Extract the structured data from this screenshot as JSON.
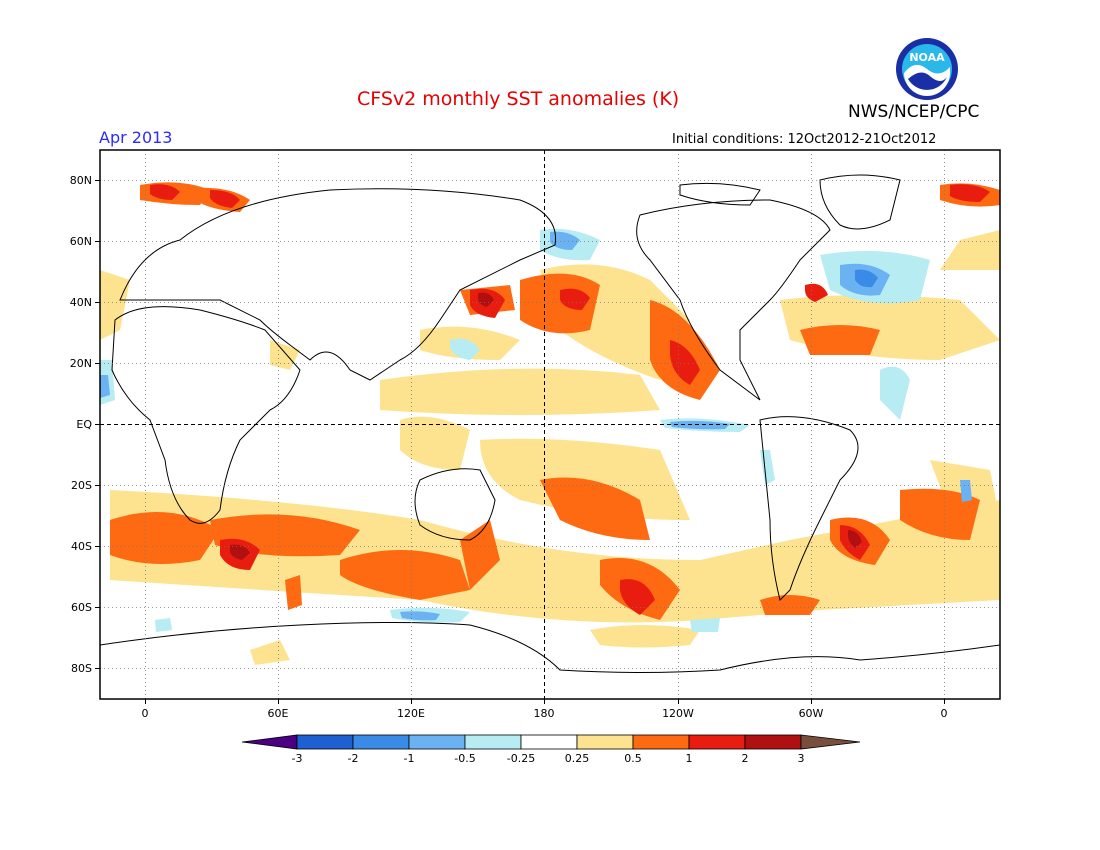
{
  "title": "CFSv2 monthly SST anomalies (K)",
  "forecast_month": "Apr 2013",
  "initial_conditions": "Initial conditions: 12Oct2012-21Oct2012",
  "agency": "NWS/NCEP/CPC",
  "logo": {
    "text": "NOAA",
    "icon": "noaa-logo-icon"
  },
  "map": {
    "projection": "cylindrical equidistant",
    "lon_range": [
      -20,
      20
    ],
    "lat_range": [
      -90,
      90
    ],
    "lat_labels": [
      "80N",
      "60N",
      "40N",
      "20N",
      "EQ",
      "20S",
      "40S",
      "60S",
      "80S"
    ],
    "lon_labels": [
      "0",
      "60E",
      "120E",
      "180",
      "120W",
      "60W",
      "0"
    ],
    "grid": "dotted",
    "reference_lines": [
      "EQ",
      "180"
    ]
  },
  "colorbar": {
    "labels": [
      "-3",
      "-2",
      "-1",
      "-0.5",
      "-0.25",
      "0.25",
      "0.5",
      "1",
      "2",
      "3"
    ],
    "colors": [
      "#4b0082",
      "#1e5fd1",
      "#3a8ae8",
      "#6ab2f2",
      "#b6ecf2",
      "#ffffff",
      "#fde38f",
      "#fd6a12",
      "#e81d10",
      "#b01010",
      "#7a4e3c"
    ]
  },
  "anomalies": {
    "warm": {
      "light": "#fde38f",
      "orange": "#fd6a12",
      "red": "#e81d10",
      "dark": "#b01010"
    },
    "cool": {
      "light": "#b6ecf2",
      "mid": "#6ab2f2",
      "deep": "#3a8ae8"
    }
  }
}
